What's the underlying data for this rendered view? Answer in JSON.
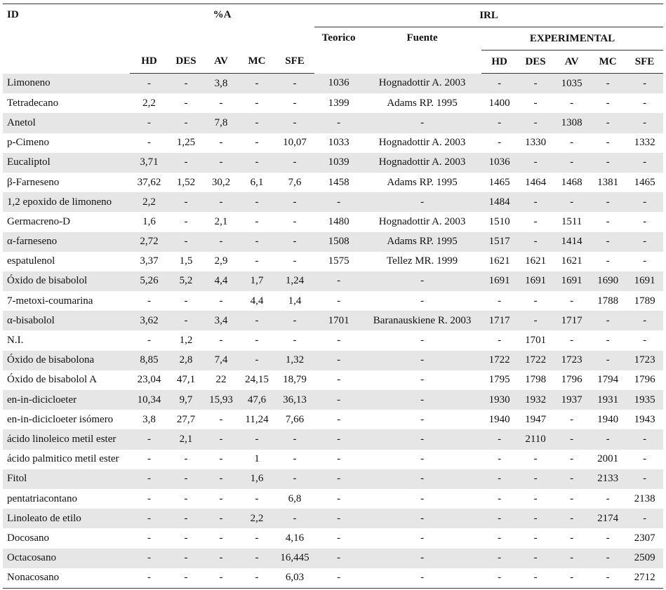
{
  "header": {
    "id": "ID",
    "pct": "%A",
    "irl": "IRL",
    "teorico": "Teorico",
    "fuente": "Fuente",
    "experimental": "EXPERIMENTAL",
    "pct_columns": [
      "HD",
      "DES",
      "AV",
      "MC",
      "SFE"
    ],
    "exp_columns": [
      "HD",
      "DES",
      "AV",
      "MC",
      "SFE"
    ]
  },
  "rows": [
    [
      "Limoneno",
      "-",
      "-",
      "3,8",
      "-",
      "-",
      "1036",
      "Hognadottir A. 2003",
      "-",
      "-",
      "1035",
      "-",
      "-"
    ],
    [
      "Tetradecano",
      "2,2",
      "-",
      "-",
      "-",
      "-",
      "1399",
      "Adams RP. 1995",
      "1400",
      "-",
      "-",
      "-",
      "-"
    ],
    [
      "Anetol",
      "-",
      "-",
      "7,8",
      "-",
      "-",
      "-",
      "-",
      "-",
      "-",
      "1308",
      "-",
      "-"
    ],
    [
      "p-Cimeno",
      "-",
      "1,25",
      "-",
      "-",
      "10,07",
      "1033",
      "Hognadottir A. 2003",
      "-",
      "1330",
      "-",
      "-",
      "1332"
    ],
    [
      "Eucaliptol",
      "3,71",
      "-",
      "-",
      "-",
      "-",
      "1039",
      "Hognadottir A. 2003",
      "1036",
      "-",
      "-",
      "-",
      "-"
    ],
    [
      "β-Farneseno",
      "37,62",
      "1,52",
      "30,2",
      "6,1",
      "7,6",
      "1458",
      "Adams RP. 1995",
      "1465",
      "1464",
      "1468",
      "1381",
      "1465"
    ],
    [
      "1,2 epoxido de limoneno",
      "2,2",
      "-",
      "-",
      "-",
      "-",
      "-",
      "-",
      "1484",
      "-",
      "-",
      "-",
      "-"
    ],
    [
      "Germacreno-D",
      "1,6",
      "-",
      "2,1",
      "-",
      "-",
      "1480",
      "Hognadottir A. 2003",
      "1510",
      "-",
      "1511",
      "-",
      "-"
    ],
    [
      "α-farneseno",
      "2,72",
      "-",
      "-",
      "-",
      "-",
      "1508",
      "Adams RP. 1995",
      "1517",
      "-",
      "1414",
      "-",
      "-"
    ],
    [
      "espatulenol",
      "3,37",
      "1,5",
      "2,9",
      "-",
      "-",
      "1575",
      "Tellez MR. 1999",
      "1621",
      "1621",
      "1621",
      "-",
      "-"
    ],
    [
      "Óxido de bisabolol",
      "5,26",
      "5,2",
      "4,4",
      "1,7",
      "1,24",
      "-",
      "-",
      "1691",
      "1691",
      "1691",
      "1690",
      "1691"
    ],
    [
      "7-metoxi-coumarina",
      "-",
      "-",
      "-",
      "4,4",
      "1,4",
      "-",
      "-",
      "-",
      "-",
      "-",
      "1788",
      "1789"
    ],
    [
      "α-bisabolol",
      "3,62",
      "-",
      "3,4",
      "-",
      "-",
      "1701",
      "Baranauskiene R. 2003",
      "1717",
      "-",
      "1717",
      "-",
      "-"
    ],
    [
      "N.I.",
      "-",
      "1,2",
      "-",
      "-",
      "-",
      "-",
      "-",
      "-",
      "1701",
      "-",
      "-",
      "-"
    ],
    [
      "Óxido de bisabolona",
      "8,85",
      "2,8",
      "7,4",
      "-",
      "1,32",
      "-",
      "-",
      "1722",
      "1722",
      "1723",
      "-",
      "1723"
    ],
    [
      "Óxido de bisabolol A",
      "23,04",
      "47,1",
      "22",
      "24,15",
      "18,79",
      "-",
      "-",
      "1795",
      "1798",
      "1796",
      "1794",
      "1796"
    ],
    [
      "en-in-dicicloeter",
      "10,34",
      "9,7",
      "15,93",
      "47,6",
      "36,13",
      "-",
      "-",
      "1930",
      "1932",
      "1937",
      "1931",
      "1935"
    ],
    [
      "en-in-dicicloeter isómero",
      "3,8",
      "27,7",
      "-",
      "11,24",
      "7,66",
      "-",
      "-",
      "1940",
      "1947",
      "-",
      "1940",
      "1943"
    ],
    [
      "ácido linoleico metil ester",
      "-",
      "2,1",
      "-",
      "-",
      "-",
      "-",
      "-",
      "-",
      "2110",
      "-",
      "-",
      "-"
    ],
    [
      "ácido palmitico metil ester",
      "-",
      "-",
      "-",
      "1",
      "-",
      "-",
      "-",
      "-",
      "-",
      "-",
      "2001",
      "-"
    ],
    [
      "Fitol",
      "-",
      "-",
      "-",
      "1,6",
      "-",
      "-",
      "-",
      "-",
      "-",
      "-",
      "2133",
      "-"
    ],
    [
      "pentatriacontano",
      "-",
      "-",
      "-",
      "-",
      "6,8",
      "-",
      "-",
      "-",
      "-",
      "-",
      "-",
      "2138"
    ],
    [
      "Linoleato de etilo",
      "-",
      "-",
      "-",
      "2,2",
      "-",
      "-",
      "-",
      "-",
      "-",
      "-",
      "2174",
      "-"
    ],
    [
      "Docosano",
      "-",
      "-",
      "-",
      "-",
      "4,16",
      "-",
      "-",
      "-",
      "-",
      "-",
      "-",
      "2307"
    ],
    [
      "Octacosano",
      "-",
      "-",
      "-",
      "-",
      "16,445",
      "-",
      "-",
      "-",
      "-",
      "-",
      "-",
      "2509"
    ],
    [
      "Nonacosano",
      "-",
      "-",
      "-",
      "-",
      "6,03",
      "-",
      "-",
      "-",
      "-",
      "-",
      "-",
      "2712"
    ]
  ]
}
